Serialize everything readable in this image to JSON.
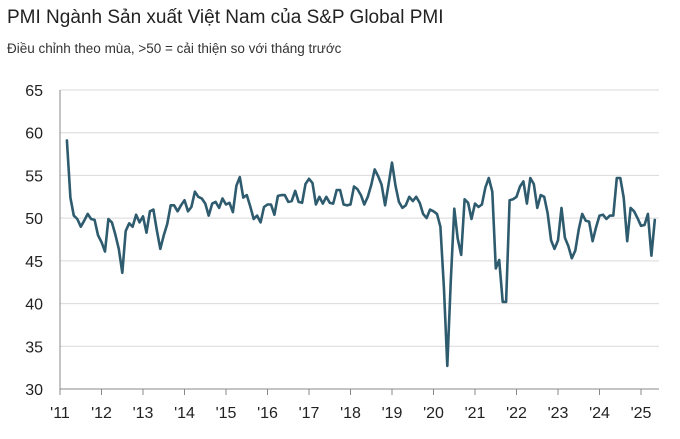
{
  "chart_data": {
    "type": "line",
    "title": "PMI Ngành Sản xuất Việt Nam của S&P Global PMI",
    "subtitle": "Điều chỉnh theo mùa, >50 = cải thiện so với tháng trước",
    "xlabel": "",
    "ylabel": "",
    "ylim": [
      30,
      65
    ],
    "y_ticks": [
      "65",
      "60",
      "55",
      "50",
      "45",
      "40",
      "35",
      "30"
    ],
    "x_ticks": [
      "'11",
      "'12",
      "'13",
      "'14",
      "'15",
      "'16",
      "'17",
      "'18",
      "'19",
      "'20",
      "'21",
      "'22",
      "'23",
      "'24",
      "'25"
    ],
    "grid": true,
    "line_color": "#2e5b6e",
    "series": [
      {
        "start": "2011-03",
        "values": [
          59.1,
          52.4,
          50.3,
          49.9,
          49.0,
          49.7,
          50.5,
          49.9,
          49.8,
          48.0,
          47.2,
          46.1,
          49.9,
          49.5,
          48.1,
          46.4,
          43.6,
          48.5,
          49.4,
          49.0,
          50.4,
          49.5,
          50.2,
          48.3,
          50.8,
          51.0,
          48.6,
          46.4,
          48.0,
          49.3,
          51.5,
          51.5,
          50.8,
          51.5,
          52.1,
          50.8,
          51.3,
          53.1,
          52.5,
          52.3,
          51.7,
          50.3,
          51.7,
          51.9,
          51.2,
          52.3,
          51.6,
          51.8,
          50.7,
          53.8,
          54.8,
          52.4,
          52.7,
          51.4,
          49.9,
          50.3,
          49.5,
          51.3,
          51.6,
          51.6,
          50.4,
          52.6,
          52.7,
          52.7,
          51.9,
          52.0,
          53.2,
          51.9,
          51.8,
          54.0,
          54.6,
          54.1,
          51.6,
          52.5,
          51.7,
          52.5,
          51.8,
          51.7,
          53.3,
          53.3,
          51.6,
          51.5,
          51.6,
          53.7,
          53.4,
          52.7,
          51.6,
          52.5,
          53.9,
          55.7,
          54.9,
          53.9,
          51.5,
          53.9,
          56.5,
          53.8,
          51.9,
          51.2,
          51.5,
          52.5,
          52.0,
          52.5,
          51.8,
          50.5,
          50.0,
          51.0,
          50.8,
          50.5,
          49.0,
          41.9,
          32.7,
          42.7,
          51.1,
          47.6,
          45.7,
          52.2,
          51.8,
          49.9,
          51.7,
          51.3,
          51.6,
          53.6,
          54.7,
          53.1,
          44.1,
          45.1,
          40.2,
          40.2,
          52.1,
          52.2,
          52.5,
          53.7,
          54.3,
          51.7,
          54.7,
          54.0,
          51.2,
          52.7,
          52.5,
          50.6,
          47.4,
          46.4,
          47.4,
          51.2,
          47.7,
          46.7,
          45.3,
          46.2,
          48.7,
          50.5,
          49.7,
          49.6,
          47.3,
          48.9,
          50.3,
          50.4,
          49.9,
          50.3,
          50.3,
          54.7,
          54.7,
          52.4,
          47.3,
          51.2,
          50.8,
          50.0,
          49.1,
          49.2,
          50.5,
          45.6,
          49.8
        ]
      }
    ]
  }
}
